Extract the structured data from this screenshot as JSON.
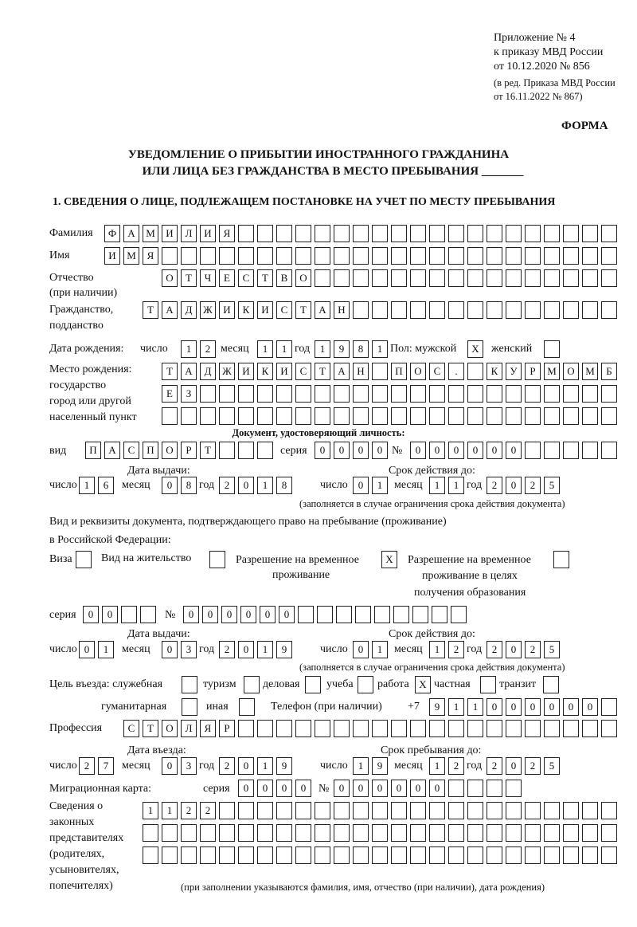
{
  "header": {
    "lines": [
      "Приложение № 4",
      "к приказу МВД России",
      "от 10.12.2020 № 856",
      "(в ред. Приказа МВД России",
      "от 16.11.2022 № 867)"
    ],
    "forma": "ФОРМА",
    "title1": "УВЕДОМЛЕНИЕ О ПРИБЫТИИ ИНОСТРАННОГО ГРАЖДАНИНА",
    "title2": "ИЛИ ЛИЦА БЕЗ ГРАЖДАНСТВА В МЕСТО ПРЕБЫВАНИЯ _______",
    "section1": "1. СВЕДЕНИЯ О ЛИЦЕ, ПОДЛЕЖАЩЕМ ПОСТАНОВКЕ НА УЧЕТ ПО МЕСТУ ПРЕБЫВАНИЯ"
  },
  "labels": {
    "surname": "Фамилия",
    "name": "Имя",
    "patronymic1": "Отчество",
    "patronymic2": "(при наличии)",
    "citizenship1": "Гражданство,",
    "citizenship2": "подданство",
    "birth_date": "Дата рождения:",
    "day": "число",
    "month": "месяц",
    "year": "год",
    "sex": "Пол: мужской",
    "female": "женский",
    "birth_place": [
      "Место рождения:",
      "государство",
      "город или другой",
      "населенный пункт"
    ],
    "id_doc": "Документ, удостоверяющий личность:",
    "kind": "вид",
    "series": "серия",
    "number": "№",
    "issue_date": "Дата выдачи:",
    "valid_until": "Срок действия до:",
    "valid_note": "(заполняется в случае ограничения срока действия документа)",
    "right_doc1": "Вид и реквизиты документа, подтверждающего право на пребывание (проживание)",
    "right_doc2": "в Российской Федерации:",
    "visa": "Виза",
    "residence": "Вид на жительство",
    "trp1": "Разрешение на временное",
    "trp2": "проживание",
    "trpe1": "Разрешение на временное",
    "trpe2": "проживание в целях",
    "trpe3": "получения образования",
    "purpose": "Цель въезда: служебная",
    "tourism": "туризм",
    "business": "деловая",
    "study": "учеба",
    "work": "работа",
    "private": "частная",
    "transit": "транзит",
    "humanitarian": "гуманитарная",
    "other": "иная",
    "phone": "Телефон (при наличии)",
    "phone_prefix": "+7",
    "profession": "Профессия",
    "entry_date": "Дата въезда:",
    "stay_until": "Срок пребывания до:",
    "migration_card": "Миграционная карта:",
    "reps": [
      "Сведения о",
      "законных",
      "представителях",
      "(родителях,",
      "усыновителях,",
      "попечителях)"
    ],
    "reps_note": "(при заполнении указываются фамилия, имя, отчество (при наличии), дата рождения)"
  },
  "values": {
    "surname": "ФАМИЛИЯ",
    "name": "ИМЯ",
    "patronymic": "ОТЧЕСТВО",
    "citizenship": "ТАДЖИКИСТАН",
    "birth_day": "12",
    "birth_month": "11",
    "birth_year": "1981",
    "male": "X",
    "female": "",
    "birth_place1": "ТАДЖИКИСТАН ПОС. КУРМОМБ",
    "birth_place2": "ЕЗ",
    "birth_place3": "",
    "doc_kind": "ПАСПОРТ",
    "doc_series": "0000",
    "doc_number": "000000",
    "doc_issue_day": "16",
    "doc_issue_month": "08",
    "doc_issue_year": "2018",
    "doc_valid_day": "01",
    "doc_valid_month": "11",
    "doc_valid_year": "2025",
    "visa": "",
    "residence": "",
    "trp": "X",
    "trpe": "",
    "rd_series": "00",
    "rd_number": "000000",
    "rd_issue_day": "01",
    "rd_issue_month": "03",
    "rd_issue_year": "2019",
    "rd_valid_day": "01",
    "rd_valid_month": "12",
    "rd_valid_year": "2025",
    "p_official": "",
    "p_tourism": "",
    "p_business": "",
    "p_study": "",
    "p_work": "X",
    "p_private": "",
    "p_transit": "",
    "p_humanitarian": "",
    "p_other": "",
    "phone": "911000000",
    "profession": "СТОЛЯР",
    "entry_day": "27",
    "entry_month": "03",
    "entry_year": "2019",
    "stay_day": "19",
    "stay_month": "12",
    "stay_year": "2025",
    "mc_series": "0000",
    "mc_number": "000000",
    "reps1": "1122",
    "reps2": "",
    "reps3": ""
  }
}
